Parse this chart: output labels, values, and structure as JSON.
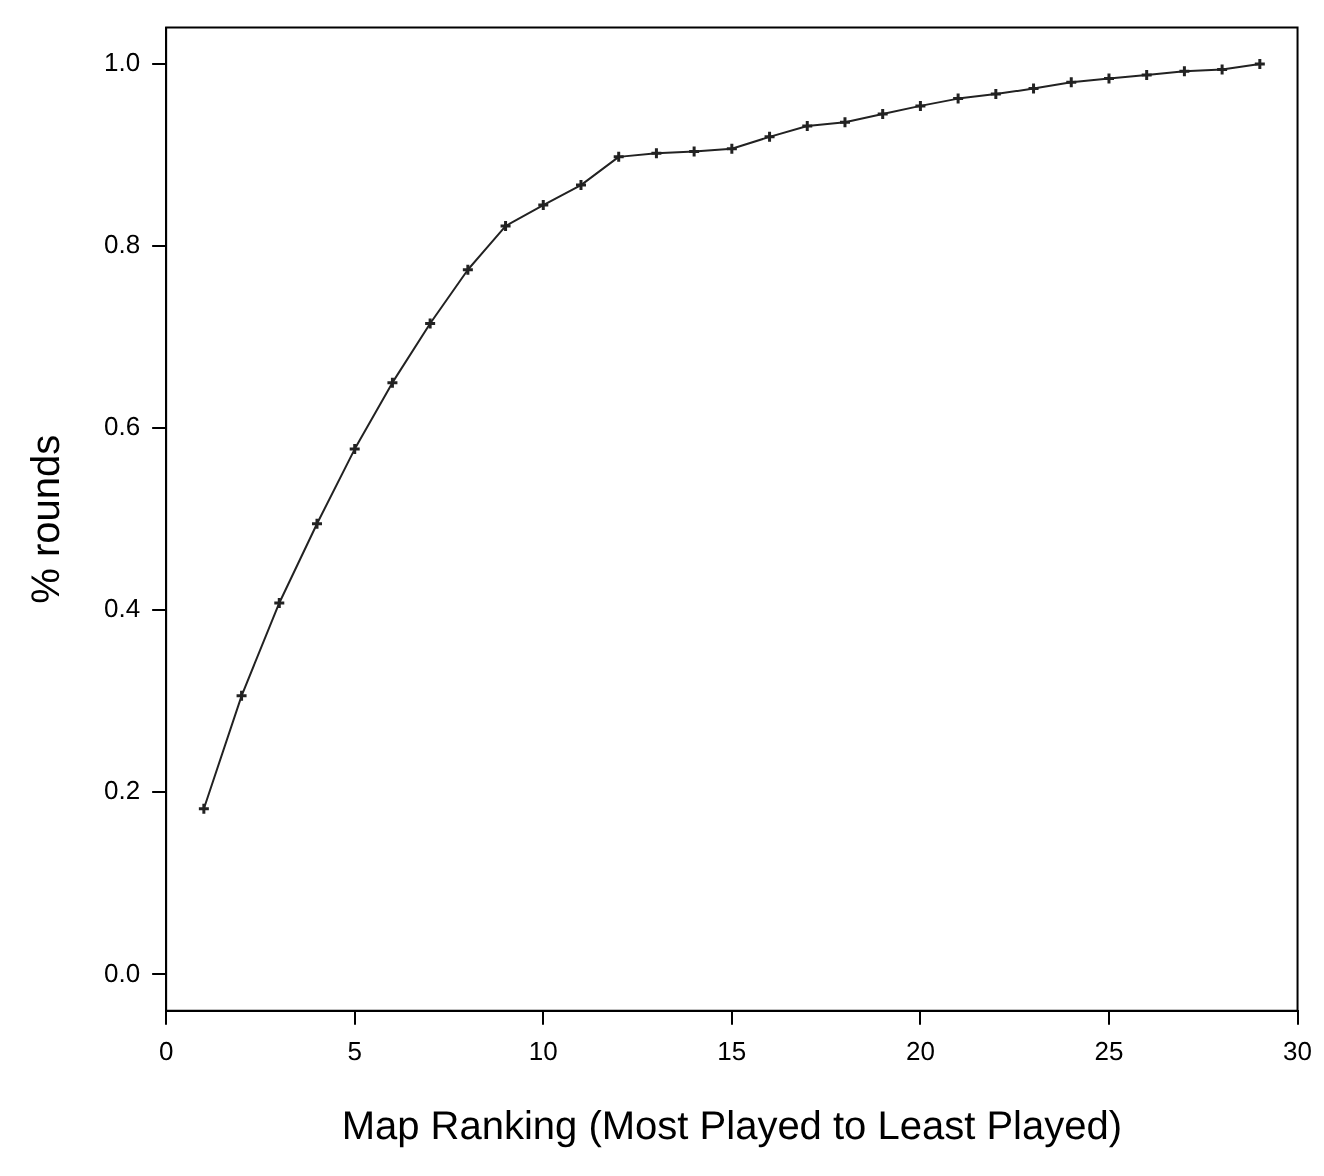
{
  "chart_data": {
    "type": "line",
    "xlabel": "Map Ranking (Most Played to Least Played)",
    "ylabel": "% rounds",
    "x": [
      1,
      2,
      3,
      4,
      5,
      6,
      7,
      8,
      9,
      10,
      11,
      12,
      13,
      14,
      15,
      16,
      17,
      18,
      19,
      20,
      21,
      22,
      23,
      24,
      25,
      26,
      27,
      28,
      29
    ],
    "series": [
      {
        "color": "#222222",
        "values": [
          0.182,
          0.306,
          0.408,
          0.495,
          0.577,
          0.65,
          0.715,
          0.774,
          0.822,
          0.845,
          0.867,
          0.898,
          0.902,
          0.904,
          0.907,
          0.92,
          0.932,
          0.936,
          0.945,
          0.954,
          0.962,
          0.967,
          0.973,
          0.98,
          0.984,
          0.988,
          0.992,
          0.994,
          1.0
        ]
      }
    ],
    "xlim": [
      0,
      30
    ],
    "xticks": [
      0,
      5,
      10,
      15,
      20,
      25,
      30
    ],
    "ylim": [
      -0.04,
      1.04
    ],
    "yticks": [
      {
        "value": 0,
        "label": "0.0"
      },
      {
        "value": 0.2,
        "label": "0.2"
      },
      {
        "value": 0.4,
        "label": "0.4"
      },
      {
        "value": 0.6,
        "label": "0.6"
      },
      {
        "value": 0.8,
        "label": "0.8"
      },
      {
        "value": 1,
        "label": "1.0"
      }
    ],
    "grid": false,
    "legend": false,
    "marker": "cross",
    "line_style": "solid"
  }
}
